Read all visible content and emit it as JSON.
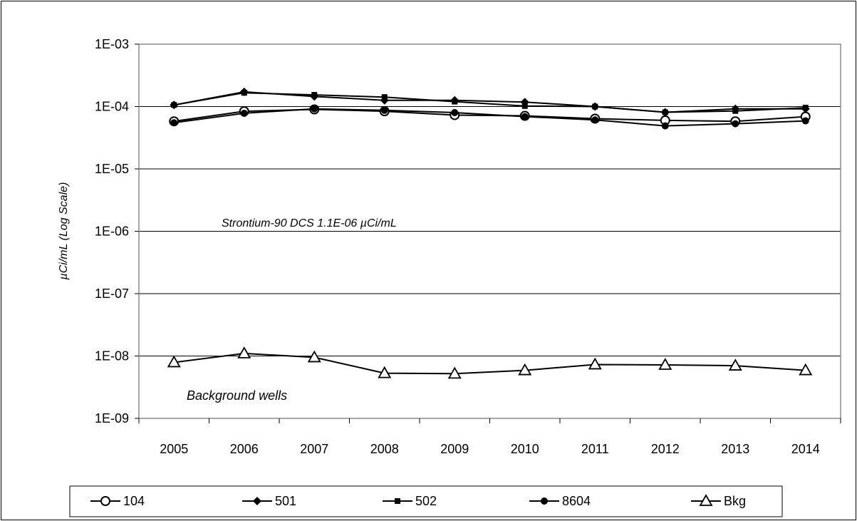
{
  "chart_data": {
    "type": "line",
    "title": "",
    "xlabel": "",
    "ylabel": "µCi/mL   (Log Scale)",
    "y_scale": "log",
    "ylim": [
      1e-09,
      0.001
    ],
    "y_ticks": [
      "1E-09",
      "1E-08",
      "1E-07",
      "1E-06",
      "1E-05",
      "1E-04",
      "1E-03"
    ],
    "categories": [
      "2005",
      "2006",
      "2007",
      "2008",
      "2009",
      "2010",
      "2011",
      "2012",
      "2013",
      "2014"
    ],
    "grid": true,
    "legend_position": "bottom",
    "series": [
      {
        "name": "104",
        "marker": "open-circle",
        "values": [
          5.8e-05,
          8.4e-05,
          9e-05,
          8.4e-05,
          7.3e-05,
          7.1e-05,
          6.4e-05,
          6e-05,
          5.8e-05,
          6.9e-05
        ]
      },
      {
        "name": "501",
        "marker": "filled-diamond",
        "values": [
          0.000106,
          0.000172,
          0.000145,
          0.000126,
          0.000126,
          0.000118,
          0.0001,
          8.1e-05,
          9.2e-05,
          9.2e-05
        ]
      },
      {
        "name": "502",
        "marker": "filled-square",
        "values": [
          0.000106,
          0.000166,
          0.000154,
          0.000142,
          0.00012,
          0.000102,
          0.0001,
          8.1e-05,
          8.5e-05,
          9.6e-05
        ]
      },
      {
        "name": "8604",
        "marker": "filled-circle",
        "values": [
          5.5e-05,
          7.8e-05,
          9.2e-05,
          8.7e-05,
          8e-05,
          6.9e-05,
          6.1e-05,
          4.9e-05,
          5.3e-05,
          5.9e-05
        ]
      },
      {
        "name": "Bkg",
        "marker": "open-triangle",
        "values": [
          7.9e-09,
          1.1e-08,
          9.5e-09,
          5.3e-09,
          5.2e-09,
          5.9e-09,
          7.3e-09,
          7.2e-09,
          7e-09,
          5.9e-09
        ]
      }
    ],
    "annotations": [
      {
        "text": "Strontium-90  DCS 1.1E-06  µCi/mL",
        "anchor_x": "2006",
        "anchor_y": 1.1e-06
      },
      {
        "text": "Background wells",
        "anchor_x": "2005.5",
        "anchor_y": 3.2e-09
      }
    ]
  }
}
